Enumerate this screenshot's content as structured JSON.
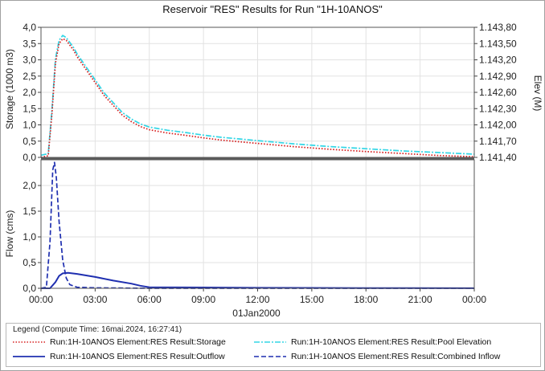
{
  "chart_data": {
    "type": "line",
    "title": "Reservoir \"RES\" Results for Run \"1H-10ANOS\"",
    "x_axis": {
      "ticks": [
        "00:00",
        "03:00",
        "06:00",
        "09:00",
        "12:00",
        "15:00",
        "18:00",
        "21:00",
        "00:00"
      ],
      "tick_hours": [
        0,
        3,
        6,
        9,
        12,
        15,
        18,
        21,
        24
      ],
      "date_label": "01Jan2000",
      "range_hours": [
        0,
        24
      ]
    },
    "top_panel": {
      "left_axis": {
        "label": "Storage (1000 m3)",
        "range": [
          0,
          4.0
        ],
        "ticks": [
          "0,0",
          "0,5",
          "1,0",
          "1,5",
          "2,0",
          "2,5",
          "3,0",
          "3,5",
          "4,0"
        ],
        "tick_values": [
          0,
          0.5,
          1.0,
          1.5,
          2.0,
          2.5,
          3.0,
          3.5,
          4.0
        ]
      },
      "right_axis": {
        "label": "Elev (M)",
        "range": [
          1141.4,
          1143.8
        ],
        "ticks": [
          "1.141,40",
          "1.141,70",
          "1.142,00",
          "1.142,30",
          "1.142,60",
          "1.142,90",
          "1.143,20",
          "1.143,50",
          "1.143,80"
        ],
        "tick_values": [
          1141.4,
          1141.7,
          1142.0,
          1142.3,
          1142.6,
          1142.9,
          1143.2,
          1143.5,
          1143.8
        ]
      },
      "series": [
        {
          "name": "Run:1H-10ANOS Element:RES Result:Storage",
          "axis": "left",
          "style": "dotted",
          "color": "#d62020",
          "x": [
            0,
            0.4,
            0.6,
            0.8,
            1.0,
            1.2,
            1.4,
            1.6,
            1.8,
            2.0,
            2.5,
            3.0,
            3.5,
            4.0,
            4.5,
            5.0,
            5.5,
            6.0,
            7.0,
            8.0,
            9.0,
            10.0,
            12.0,
            14.0,
            16.0,
            18.0,
            20.0,
            22.0,
            24.0
          ],
          "y": [
            0.0,
            0.05,
            1.3,
            2.9,
            3.5,
            3.65,
            3.6,
            3.45,
            3.3,
            3.1,
            2.7,
            2.3,
            1.9,
            1.6,
            1.3,
            1.1,
            0.95,
            0.85,
            0.75,
            0.68,
            0.6,
            0.53,
            0.43,
            0.33,
            0.25,
            0.18,
            0.12,
            0.06,
            0.02
          ]
        },
        {
          "name": "Run:1H-10ANOS Element:RES Result:Pool Elevation",
          "axis": "right",
          "style": "dash-dot",
          "color": "#33d6e6",
          "x": [
            0,
            0.4,
            0.6,
            0.8,
            1.0,
            1.2,
            1.4,
            1.6,
            1.8,
            2.0,
            2.5,
            3.0,
            3.5,
            4.0,
            4.5,
            5.0,
            5.5,
            6.0,
            7.0,
            8.0,
            9.0,
            10.0,
            12.0,
            14.0,
            16.0,
            18.0,
            20.0,
            22.0,
            24.0
          ],
          "y": [
            1141.44,
            1141.47,
            1142.25,
            1143.22,
            1143.56,
            1143.65,
            1143.61,
            1143.52,
            1143.43,
            1143.31,
            1143.07,
            1142.83,
            1142.59,
            1142.41,
            1142.23,
            1142.11,
            1142.02,
            1141.96,
            1141.9,
            1141.86,
            1141.81,
            1141.77,
            1141.71,
            1141.65,
            1141.6,
            1141.56,
            1141.52,
            1141.49,
            1141.46
          ]
        }
      ]
    },
    "bottom_panel": {
      "left_axis": {
        "label": "Flow (cms)",
        "range": [
          0,
          2.5
        ],
        "ticks": [
          "0,0",
          "0,5",
          "1,0",
          "1,5",
          "2,0"
        ],
        "tick_values": [
          0,
          0.5,
          1.0,
          1.5,
          2.0
        ]
      },
      "series": [
        {
          "name": "Run:1H-10ANOS Element:RES Result:Outflow",
          "style": "solid",
          "color": "#1f2fb0",
          "x": [
            0,
            0.5,
            0.8,
            1.0,
            1.2,
            1.5,
            2.0,
            3.0,
            4.0,
            5.0,
            5.5,
            6.0,
            9.0,
            12.0,
            18.0,
            24.0
          ],
          "y": [
            0.0,
            0.0,
            0.12,
            0.24,
            0.29,
            0.3,
            0.28,
            0.22,
            0.15,
            0.09,
            0.05,
            0.02,
            0.015,
            0.01,
            0.005,
            0.002
          ]
        },
        {
          "name": "Run:1H-10ANOS Element:RES Result:Combined Inflow",
          "style": "dashed",
          "color": "#1f2fb0",
          "x": [
            0,
            0.3,
            0.5,
            0.65,
            0.75,
            0.85,
            1.0,
            1.2,
            1.4,
            1.6,
            2.0,
            3.0,
            6.0,
            12.0,
            24.0
          ],
          "y": [
            0.0,
            0.02,
            0.9,
            2.3,
            2.45,
            2.15,
            1.3,
            0.55,
            0.2,
            0.07,
            0.02,
            0.01,
            0.0,
            0.0,
            0.0
          ]
        }
      ]
    }
  },
  "legend": {
    "caption": "Legend (Compute Time: 16mai.2024, 16:27:41)",
    "items": [
      "Run:1H-10ANOS Element:RES Result:Storage",
      "Run:1H-10ANOS Element:RES Result:Pool Elevation",
      "Run:1H-10ANOS Element:RES Result:Outflow",
      "Run:1H-10ANOS Element:RES Result:Combined Inflow"
    ]
  }
}
